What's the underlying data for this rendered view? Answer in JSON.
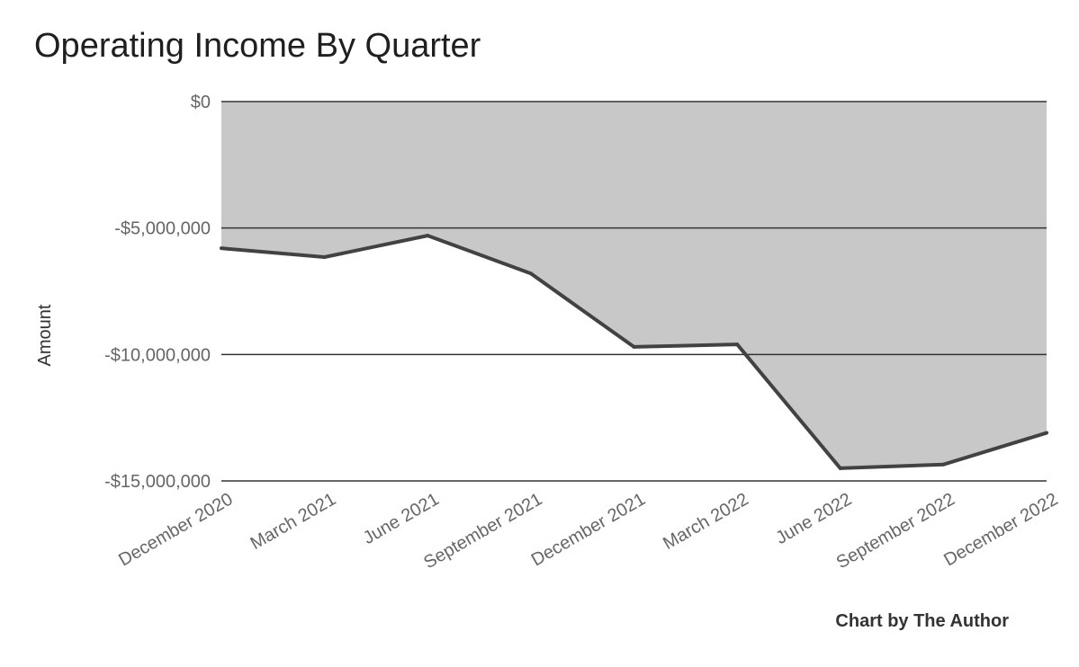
{
  "chart_data": {
    "type": "area",
    "title": "Operating Income By Quarter",
    "xlabel": "",
    "ylabel": "Amount",
    "categories": [
      "December 2020",
      "March 2021",
      "June 2021",
      "September 2021",
      "December 2021",
      "March 2022",
      "June 2022",
      "September 2022",
      "December 2022"
    ],
    "series": [
      {
        "values": [
          -5800000,
          -6150000,
          -5300000,
          -6800000,
          -9700000,
          -9600000,
          -14500000,
          -14350000,
          -13100000
        ]
      }
    ],
    "ylim": [
      -15000000,
      0
    ],
    "yticks": [
      0,
      -5000000,
      -10000000,
      -15000000
    ],
    "ytick_labels": [
      "$0",
      "-$5,000,000",
      "-$10,000,000",
      "-$15,000,000"
    ],
    "grid": true,
    "colors": {
      "area_fill": "#c8c8c8",
      "line": "#424242",
      "grid": "#333333"
    },
    "credit": "Chart by The Author"
  }
}
